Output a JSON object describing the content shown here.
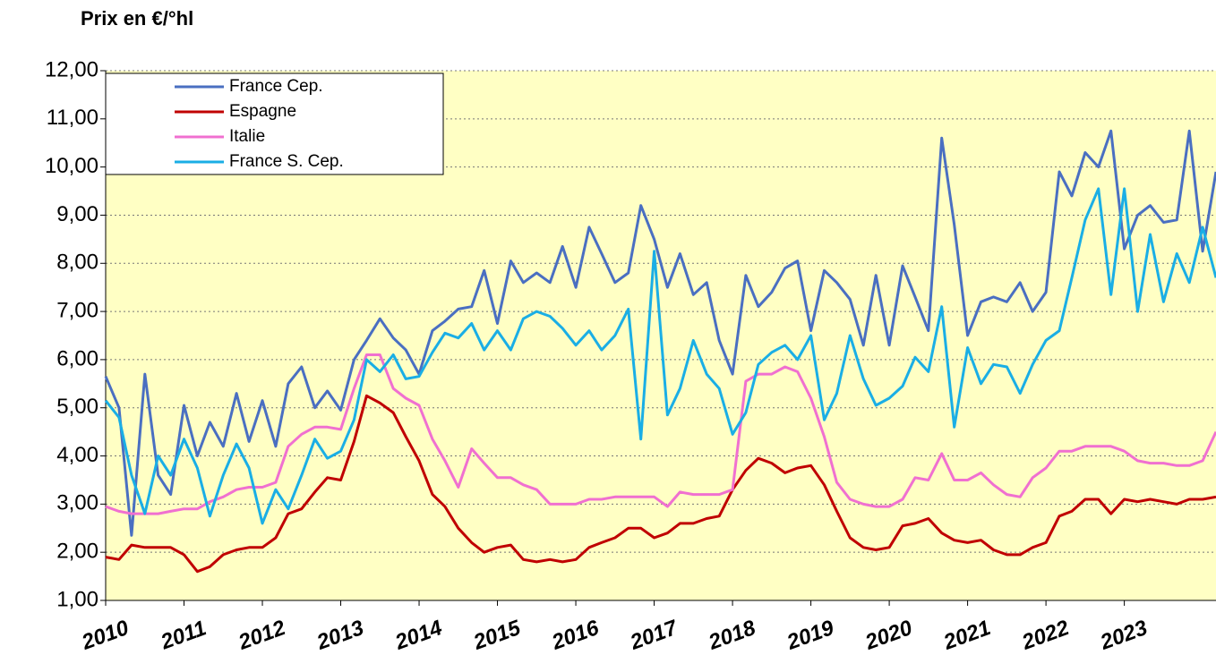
{
  "chart_data": {
    "type": "line",
    "title": "Prix en €/°hl",
    "x": [
      2010,
      2010.17,
      2010.33,
      2010.5,
      2010.67,
      2010.83,
      2011,
      2011.17,
      2011.33,
      2011.5,
      2011.67,
      2011.83,
      2012,
      2012.17,
      2012.33,
      2012.5,
      2012.67,
      2012.83,
      2013,
      2013.17,
      2013.33,
      2013.5,
      2013.67,
      2013.83,
      2014,
      2014.17,
      2014.33,
      2014.5,
      2014.67,
      2014.83,
      2015,
      2015.17,
      2015.33,
      2015.5,
      2015.67,
      2015.83,
      2016,
      2016.17,
      2016.33,
      2016.5,
      2016.67,
      2016.83,
      2017,
      2017.17,
      2017.33,
      2017.5,
      2017.67,
      2017.83,
      2018,
      2018.17,
      2018.33,
      2018.5,
      2018.67,
      2018.83,
      2019,
      2019.17,
      2019.33,
      2019.5,
      2019.67,
      2019.83,
      2020,
      2020.17,
      2020.33,
      2020.5,
      2020.67,
      2020.83,
      2021,
      2021.17,
      2021.33,
      2021.5,
      2021.67,
      2021.83,
      2022,
      2022.17,
      2022.33,
      2022.5,
      2022.67,
      2022.83,
      2023,
      2023.17,
      2023.33,
      2023.5,
      2023.67,
      2023.83,
      2024,
      2024.17
    ],
    "series": [
      {
        "name": "France Cep.",
        "color": "#4a6fc1",
        "values": [
          5.65,
          5.0,
          2.35,
          5.7,
          3.6,
          3.2,
          5.05,
          4.0,
          4.7,
          4.2,
          5.3,
          4.3,
          5.15,
          4.2,
          5.5,
          5.85,
          5.0,
          5.35,
          4.95,
          6.0,
          6.4,
          6.85,
          6.45,
          6.2,
          5.7,
          6.6,
          6.8,
          7.05,
          7.1,
          7.85,
          6.75,
          8.05,
          7.6,
          7.8,
          7.6,
          8.35,
          7.5,
          8.75,
          8.2,
          7.6,
          7.8,
          9.2,
          8.5,
          7.5,
          8.2,
          7.35,
          7.6,
          6.4,
          5.7,
          7.75,
          7.1,
          7.4,
          7.9,
          8.05,
          6.6,
          7.85,
          7.6,
          7.25,
          6.3,
          7.75,
          6.3,
          7.95,
          7.3,
          6.6,
          10.6,
          8.8,
          6.5,
          7.2,
          7.3,
          7.2,
          7.6,
          7.0,
          7.4,
          9.9,
          9.4,
          10.3,
          10.0,
          10.75,
          8.3,
          9.0,
          9.2,
          8.85,
          8.9,
          10.75,
          8.25,
          9.9
        ]
      },
      {
        "name": "Espagne",
        "color": "#c00000",
        "values": [
          1.9,
          1.85,
          2.15,
          2.1,
          2.1,
          2.1,
          1.95,
          1.6,
          1.7,
          1.95,
          2.05,
          2.1,
          2.1,
          2.3,
          2.8,
          2.9,
          3.25,
          3.55,
          3.5,
          4.3,
          5.25,
          5.1,
          4.9,
          4.4,
          3.9,
          3.2,
          2.95,
          2.5,
          2.2,
          2.0,
          2.1,
          2.15,
          1.85,
          1.8,
          1.85,
          1.8,
          1.85,
          2.1,
          2.2,
          2.3,
          2.5,
          2.5,
          2.3,
          2.4,
          2.6,
          2.6,
          2.7,
          2.75,
          3.3,
          3.7,
          3.95,
          3.85,
          3.65,
          3.75,
          3.8,
          3.4,
          2.85,
          2.3,
          2.1,
          2.05,
          2.1,
          2.55,
          2.6,
          2.7,
          2.4,
          2.25,
          2.2,
          2.25,
          2.05,
          1.95,
          1.95,
          2.1,
          2.2,
          2.75,
          2.85,
          3.1,
          3.1,
          2.8,
          3.1,
          3.05,
          3.1,
          3.05,
          3.0,
          3.1,
          3.1,
          3.15
        ]
      },
      {
        "name": "Italie",
        "color": "#f070d0",
        "values": [
          2.95,
          2.85,
          2.8,
          2.8,
          2.8,
          2.85,
          2.9,
          2.9,
          3.05,
          3.15,
          3.3,
          3.35,
          3.35,
          3.45,
          4.2,
          4.45,
          4.6,
          4.6,
          4.55,
          5.4,
          6.1,
          6.1,
          5.4,
          5.2,
          5.05,
          4.35,
          3.9,
          3.35,
          4.15,
          3.85,
          3.55,
          3.55,
          3.4,
          3.3,
          3.0,
          3.0,
          3.0,
          3.1,
          3.1,
          3.15,
          3.15,
          3.15,
          3.15,
          2.95,
          3.25,
          3.2,
          3.2,
          3.2,
          3.3,
          5.55,
          5.7,
          5.7,
          5.85,
          5.75,
          5.2,
          4.4,
          3.45,
          3.1,
          3.0,
          2.95,
          2.95,
          3.1,
          3.55,
          3.5,
          4.05,
          3.5,
          3.5,
          3.65,
          3.4,
          3.2,
          3.15,
          3.55,
          3.75,
          4.1,
          4.1,
          4.2,
          4.2,
          4.2,
          4.1,
          3.9,
          3.85,
          3.85,
          3.8,
          3.8,
          3.9,
          4.5
        ]
      },
      {
        "name": "France S. Cep.",
        "color": "#1aaee5",
        "values": [
          5.15,
          4.8,
          3.6,
          2.8,
          4.0,
          3.6,
          4.35,
          3.75,
          2.75,
          3.6,
          4.25,
          3.75,
          2.6,
          3.3,
          2.9,
          3.6,
          4.35,
          3.95,
          4.1,
          4.75,
          6.0,
          5.75,
          6.1,
          5.6,
          5.65,
          6.15,
          6.55,
          6.45,
          6.75,
          6.2,
          6.6,
          6.2,
          6.85,
          7.0,
          6.9,
          6.65,
          6.3,
          6.6,
          6.2,
          6.5,
          7.05,
          4.35,
          8.25,
          4.85,
          5.4,
          6.4,
          5.7,
          5.4,
          4.45,
          4.9,
          5.9,
          6.15,
          6.3,
          6.0,
          6.5,
          4.75,
          5.3,
          6.5,
          5.6,
          5.05,
          5.2,
          5.45,
          6.05,
          5.75,
          7.1,
          4.6,
          6.25,
          5.5,
          5.9,
          5.85,
          5.3,
          5.9,
          6.4,
          6.6,
          7.7,
          8.9,
          9.55,
          7.35,
          9.55,
          7.0,
          8.6,
          7.2,
          8.2,
          7.6,
          8.75,
          7.7
        ]
      }
    ],
    "xlim": [
      2010,
      2024.17
    ],
    "xticks": [
      2010,
      2011,
      2012,
      2013,
      2014,
      2015,
      2016,
      2017,
      2018,
      2019,
      2020,
      2021,
      2022,
      2023
    ],
    "ylim": [
      1,
      12
    ],
    "yticks": [
      {
        "value": 1,
        "label": "1,00"
      },
      {
        "value": 2,
        "label": "2,00"
      },
      {
        "value": 3,
        "label": "3,00"
      },
      {
        "value": 4,
        "label": "4,00"
      },
      {
        "value": 5,
        "label": "5,00"
      },
      {
        "value": 6,
        "label": "6,00"
      },
      {
        "value": 7,
        "label": "7,00"
      },
      {
        "value": 8,
        "label": "8,00"
      },
      {
        "value": 9,
        "label": "9,00"
      },
      {
        "value": 10,
        "label": "10,00"
      },
      {
        "value": 11,
        "label": "11,00"
      },
      {
        "value": 12,
        "label": "12,00"
      }
    ],
    "grid": true,
    "legend": "upper left"
  }
}
